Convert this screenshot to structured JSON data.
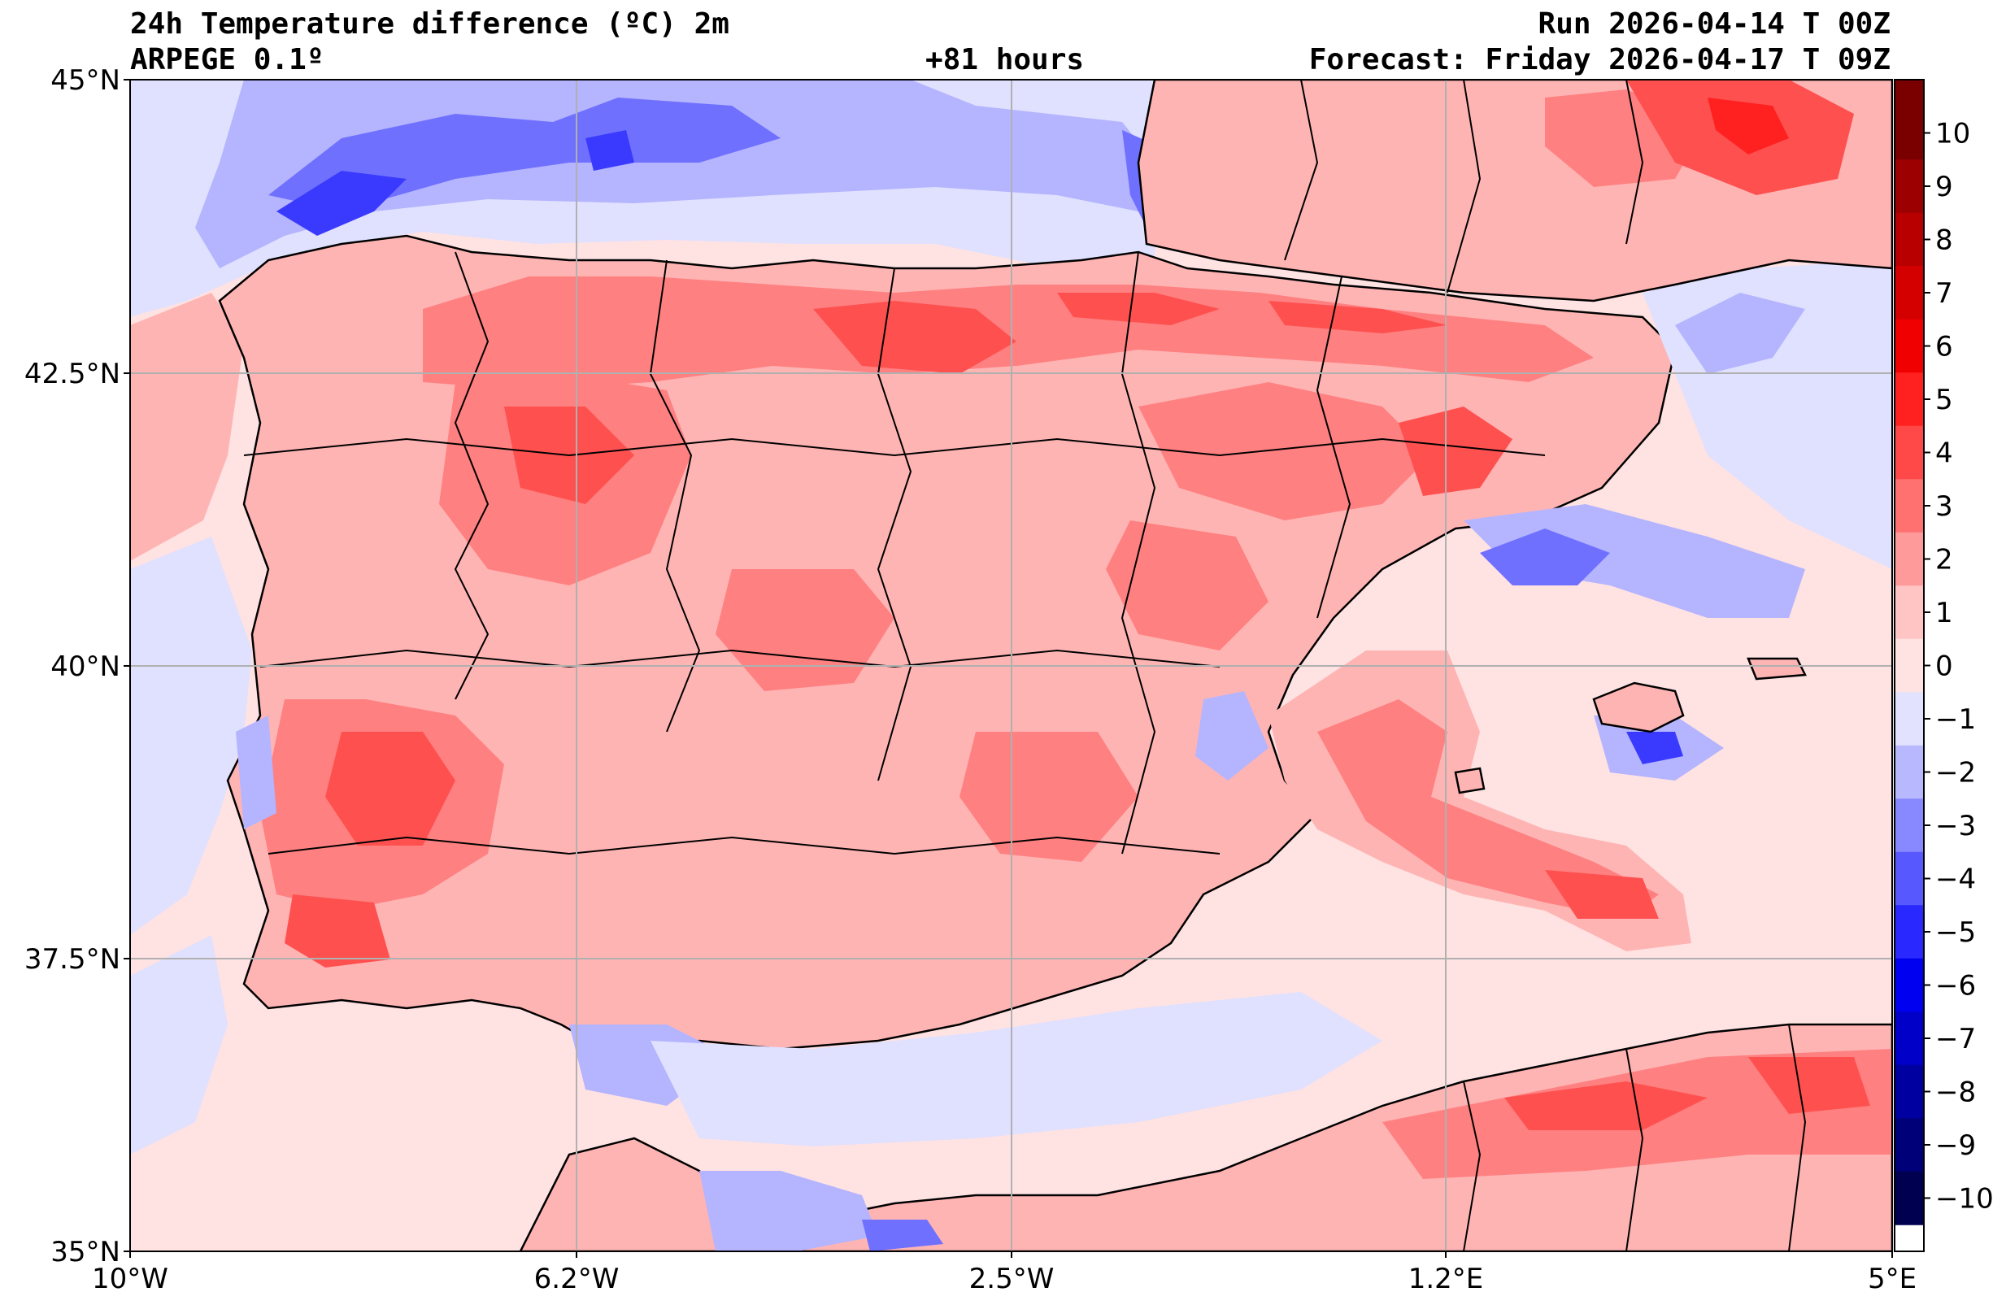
{
  "header": {
    "title": "24h Temperature difference (ºC) 2m",
    "model": "ARPEGE 0.1º",
    "run": "Run 2026-04-14 T 00Z",
    "lead_time": "+81 hours",
    "forecast": "Forecast: Friday 2026-04-17 T 09Z"
  },
  "map": {
    "lat_labels": [
      "45°N",
      "42.5°N",
      "40°N",
      "37.5°N",
      "35°N"
    ],
    "lon_labels": [
      "10°W",
      "6.2°W",
      "2.5°W",
      "1.2°E",
      "5°E"
    ],
    "extent": {
      "lon_min": -10,
      "lon_max": 5,
      "lat_min": 35,
      "lat_max": 45
    }
  },
  "colorbar": {
    "labels": [
      "10",
      "9",
      "8",
      "7",
      "6",
      "5",
      "4",
      "3",
      "2",
      "1",
      "0",
      "−1",
      "−2",
      "−3",
      "−4",
      "−5",
      "−6",
      "−7",
      "−8",
      "−9",
      "−10"
    ],
    "colors": [
      "#7a0000",
      "#9c0000",
      "#b80000",
      "#d40000",
      "#f00000",
      "#ff2020",
      "#ff4848",
      "#ff7070",
      "#ff9a9a",
      "#ffc4c4",
      "#ffe2e2",
      "#e2e2ff",
      "#b8b8ff",
      "#8888ff",
      "#5858ff",
      "#2828ff",
      "#0000f0",
      "#0000c8",
      "#0000a0",
      "#000078",
      "#000050"
    ]
  },
  "palette": {
    "sea": "#ffe2e2",
    "light_red": "#ffb4b4",
    "mid_red": "#ff8080",
    "strong_red": "#ff5050",
    "light_blue": "#e0e0ff",
    "mid_blue": "#b4b4ff",
    "strong_blue": "#7070ff",
    "deep_blue": "#3a3aff"
  }
}
